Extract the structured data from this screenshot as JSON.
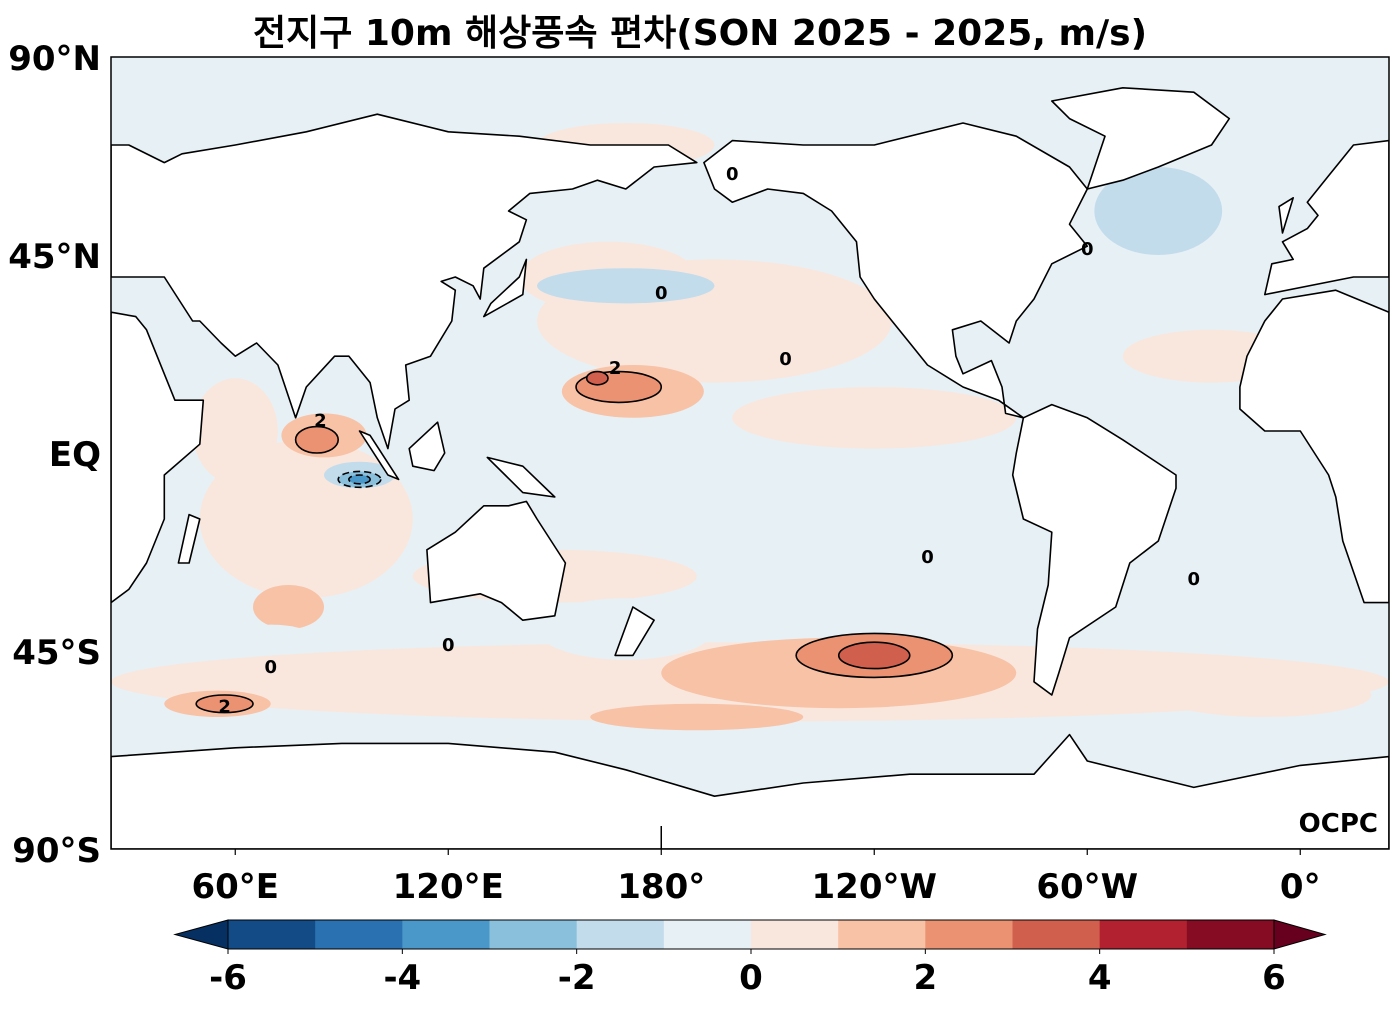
{
  "title": "전지구 10m 해상풍속 편차(SON 2025 - 2025, m/s)",
  "logo_text": "OCPC",
  "map": {
    "projection": "PlateCarree",
    "central_longitude": 205,
    "lon_range": [
      25,
      385
    ],
    "lat_range": [
      -90,
      90
    ],
    "lat_ticks": [
      {
        "lat": 90,
        "label": "90°N"
      },
      {
        "lat": 45,
        "label": "45°N"
      },
      {
        "lat": 0,
        "label": "EQ"
      },
      {
        "lat": -45,
        "label": "45°S"
      },
      {
        "lat": -90,
        "label": "90°S"
      }
    ],
    "lon_ticks": [
      {
        "lon": 60,
        "label": "60°E"
      },
      {
        "lon": 120,
        "label": "120°E"
      },
      {
        "lon": 180,
        "label": "180°"
      },
      {
        "lon": 240,
        "label": "120°W"
      },
      {
        "lon": 300,
        "label": "60°W"
      },
      {
        "lon": 360,
        "label": "0°"
      }
    ],
    "contour_label": "0",
    "contour_label_2": "2",
    "anomaly_regions": [
      {
        "lon": 195,
        "lat": 30,
        "rlon": 50,
        "rlat": 14,
        "value": 0.5
      },
      {
        "lon": 165,
        "lat": 40,
        "rlon": 25,
        "rlat": 8,
        "value": 0.5
      },
      {
        "lon": 240,
        "lat": 8,
        "rlon": 40,
        "rlat": 7,
        "value": 0.5
      },
      {
        "lon": 80,
        "lat": -15,
        "rlon": 30,
        "rlat": 18,
        "value": 0.5
      },
      {
        "lon": 60,
        "lat": 5,
        "rlon": 12,
        "rlat": 12,
        "value": 0.5
      },
      {
        "lon": 205,
        "lat": -52,
        "rlon": 180,
        "rlat": 9,
        "value": 0.5
      },
      {
        "lon": 150,
        "lat": -28,
        "rlon": 40,
        "rlat": 6,
        "value": 0.5
      },
      {
        "lon": 335,
        "lat": 22,
        "rlon": 25,
        "rlat": 6,
        "value": 0.5
      },
      {
        "lon": 170,
        "lat": 70,
        "rlon": 25,
        "rlat": 5,
        "value": 0.5
      },
      {
        "lon": 350,
        "lat": -55,
        "rlon": 30,
        "rlat": 5,
        "value": 0.5
      },
      {
        "lon": 172,
        "lat": 14,
        "rlon": 20,
        "rlat": 6,
        "value": 1.5
      },
      {
        "lon": 85,
        "lat": 4,
        "rlon": 12,
        "rlat": 5,
        "value": 1.5
      },
      {
        "lon": 75,
        "lat": -35,
        "rlon": 10,
        "rlat": 5,
        "value": 1.0
      },
      {
        "lon": 230,
        "lat": -50,
        "rlon": 50,
        "rlat": 8,
        "value": 1.5
      },
      {
        "lon": 190,
        "lat": -60,
        "rlon": 30,
        "rlat": 3,
        "value": 1.5
      },
      {
        "lon": 55,
        "lat": -57,
        "rlon": 15,
        "rlat": 3,
        "value": 1.5
      },
      {
        "lon": 168,
        "lat": 15,
        "rlon": 12,
        "rlat": 3.5,
        "value": 2.5
      },
      {
        "lon": 83,
        "lat": 3,
        "rlon": 6,
        "rlat": 3,
        "value": 2.5
      },
      {
        "lon": 240,
        "lat": -46,
        "rlon": 22,
        "rlat": 5,
        "value": 2.5
      },
      {
        "lon": 240,
        "lat": -46,
        "rlon": 10,
        "rlat": 3,
        "value": 3.5
      },
      {
        "lon": 57,
        "lat": -57,
        "rlon": 8,
        "rlat": 2,
        "value": 2.5
      },
      {
        "lon": 162,
        "lat": 17,
        "rlon": 3,
        "rlat": 1.5,
        "value": 3.5
      },
      {
        "lon": 170,
        "lat": -40,
        "rlon": 25,
        "rlat": 7,
        "value": -0.5
      },
      {
        "lon": 70,
        "lat": -42,
        "rlon": 12,
        "rlat": 3,
        "value": -0.5
      },
      {
        "lon": 250,
        "lat": -72,
        "rlon": 20,
        "rlat": 5,
        "value": -0.5
      },
      {
        "lon": 320,
        "lat": 55,
        "rlon": 18,
        "rlat": 10,
        "value": -1.5
      },
      {
        "lon": 170,
        "lat": 38,
        "rlon": 25,
        "rlat": 4,
        "value": -1.5
      },
      {
        "lon": 95,
        "lat": -5,
        "rlon": 10,
        "rlat": 3,
        "value": -1.5
      },
      {
        "lon": 95,
        "lat": -6,
        "rlon": 6,
        "rlat": 1.8,
        "value": -2.5
      },
      {
        "lon": 95,
        "lat": -6,
        "rlon": 3,
        "rlat": 1,
        "value": -3.5
      },
      {
        "lon": 185,
        "lat": 80,
        "rlon": 30,
        "rlat": 4,
        "value": -0.5
      }
    ]
  },
  "colorbar": {
    "levels": [
      -6,
      -5,
      -4,
      -3,
      -2,
      -1,
      0,
      1,
      2,
      3,
      4,
      5,
      6
    ],
    "colors": [
      "#134b87",
      "#2a71b2",
      "#4a98c9",
      "#8ac0dc",
      "#c2dcec",
      "#e7f0f5",
      "#f9e7dd",
      "#f8c2a6",
      "#eb9272",
      "#d15f4e",
      "#b1212f",
      "#850c22"
    ],
    "under_color": "#053061",
    "over_color": "#67001f",
    "extend": "both",
    "tick_labels": [
      "-6",
      "-4",
      "-2",
      "0",
      "2",
      "4",
      "6"
    ]
  },
  "land_color": "#ffffff"
}
